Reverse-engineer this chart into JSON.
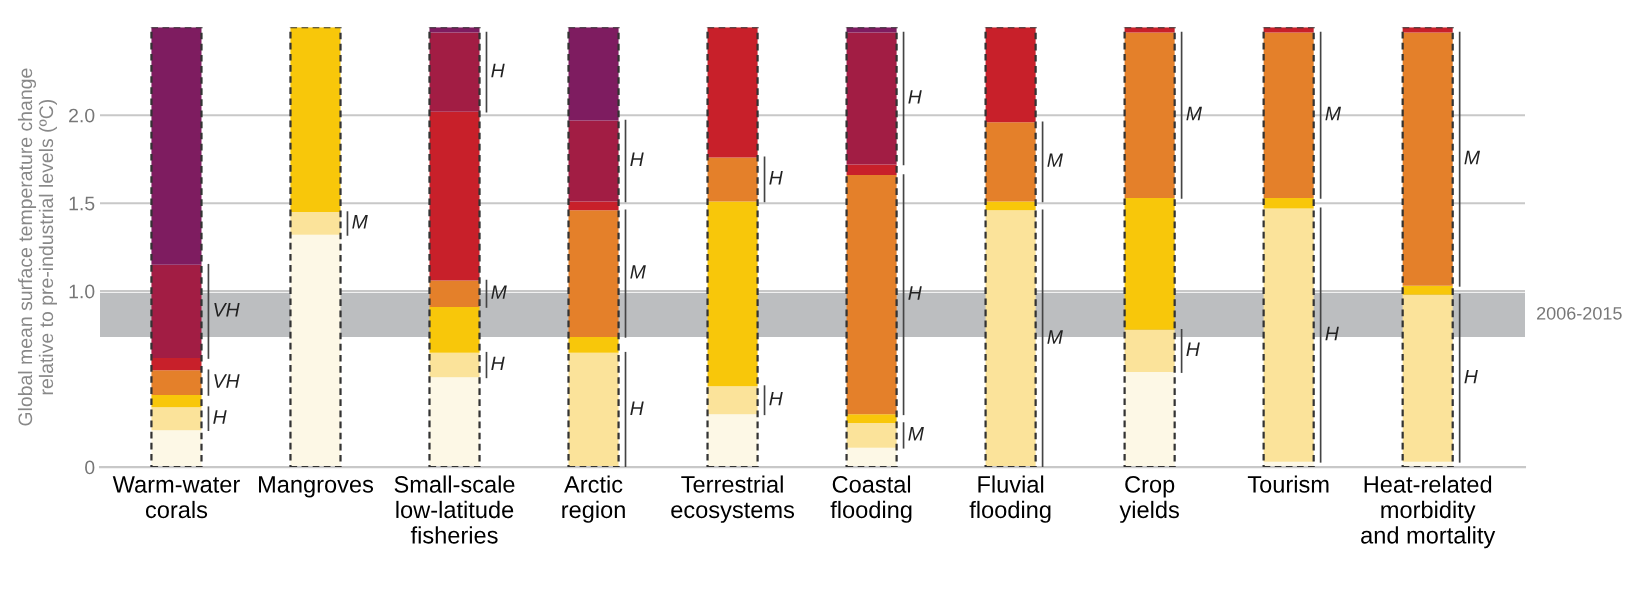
{
  "chart_data": {
    "type": "bar",
    "stacked": true,
    "ylabel": "Global mean surface temperature change\nrelative to pre-industrial levels (ºC)",
    "categories": [
      "Warm-water\ncorals",
      "Mangroves",
      "Small-scale\nlow-latitude\nfisheries",
      "Arctic\nregion",
      "Terrestrial\necosystems",
      "Coastal\nflooding",
      "Fluvial\nflooding",
      "Crop\nyields",
      "Tourism",
      "Heat-related\nmorbidity\nand mortality"
    ],
    "series": [
      {
        "color": "#fdf8e6",
        "values": [
          0.21,
          1.32,
          0.51,
          0,
          0.3,
          0.11,
          0,
          0.54,
          0.03,
          0.03
        ]
      },
      {
        "color": "#fbe39a",
        "values": [
          0.13,
          0.13,
          0.14,
          0.65,
          0.16,
          0.14,
          1.46,
          0.24,
          1.44,
          0.95
        ]
      },
      {
        "color": "#f8c70a",
        "values": [
          0.07,
          1.05,
          0.26,
          0.09,
          1.05,
          0.05,
          0.05,
          0.75,
          0.06,
          0.05
        ]
      },
      {
        "color": "#e4802a",
        "values": [
          0.14,
          0,
          0.15,
          0.72,
          0.25,
          1.36,
          0.45,
          0.94,
          0.94,
          1.44
        ]
      },
      {
        "color": "#c8202a",
        "values": [
          0.07,
          0,
          0.96,
          0.05,
          0.74,
          0.06,
          0.54,
          0.03,
          0.03,
          0.03
        ]
      },
      {
        "color": "#a21d44",
        "values": [
          0.53,
          0,
          0.45,
          0.46,
          0,
          0.75,
          0,
          0,
          0,
          0
        ]
      },
      {
        "color": "#7e1c60",
        "values": [
          1.35,
          0,
          0.03,
          0.53,
          0,
          0.03,
          0,
          0,
          0,
          0
        ]
      }
    ],
    "ylim": [
      0,
      2.5
    ],
    "yticks": [
      0,
      {
        "value": 1,
        "label": "1.0"
      },
      {
        "value": 1.5,
        "label": "1.5"
      },
      {
        "value": 2,
        "label": "2.0"
      }
    ],
    "grid": "y",
    "bands": [
      {
        "axis": "y",
        "from": 0.74,
        "to": 0.99,
        "label": "2006-2015",
        "color": "#bcbec0"
      }
    ],
    "annotations": [
      "VH",
      "VH",
      "H",
      "M",
      "H",
      "M",
      "H",
      "H",
      "M",
      "H",
      "H",
      "H",
      "H",
      "H",
      "M",
      "M",
      "M",
      "M",
      "H",
      "M",
      "H",
      "M",
      "H"
    ]
  }
}
